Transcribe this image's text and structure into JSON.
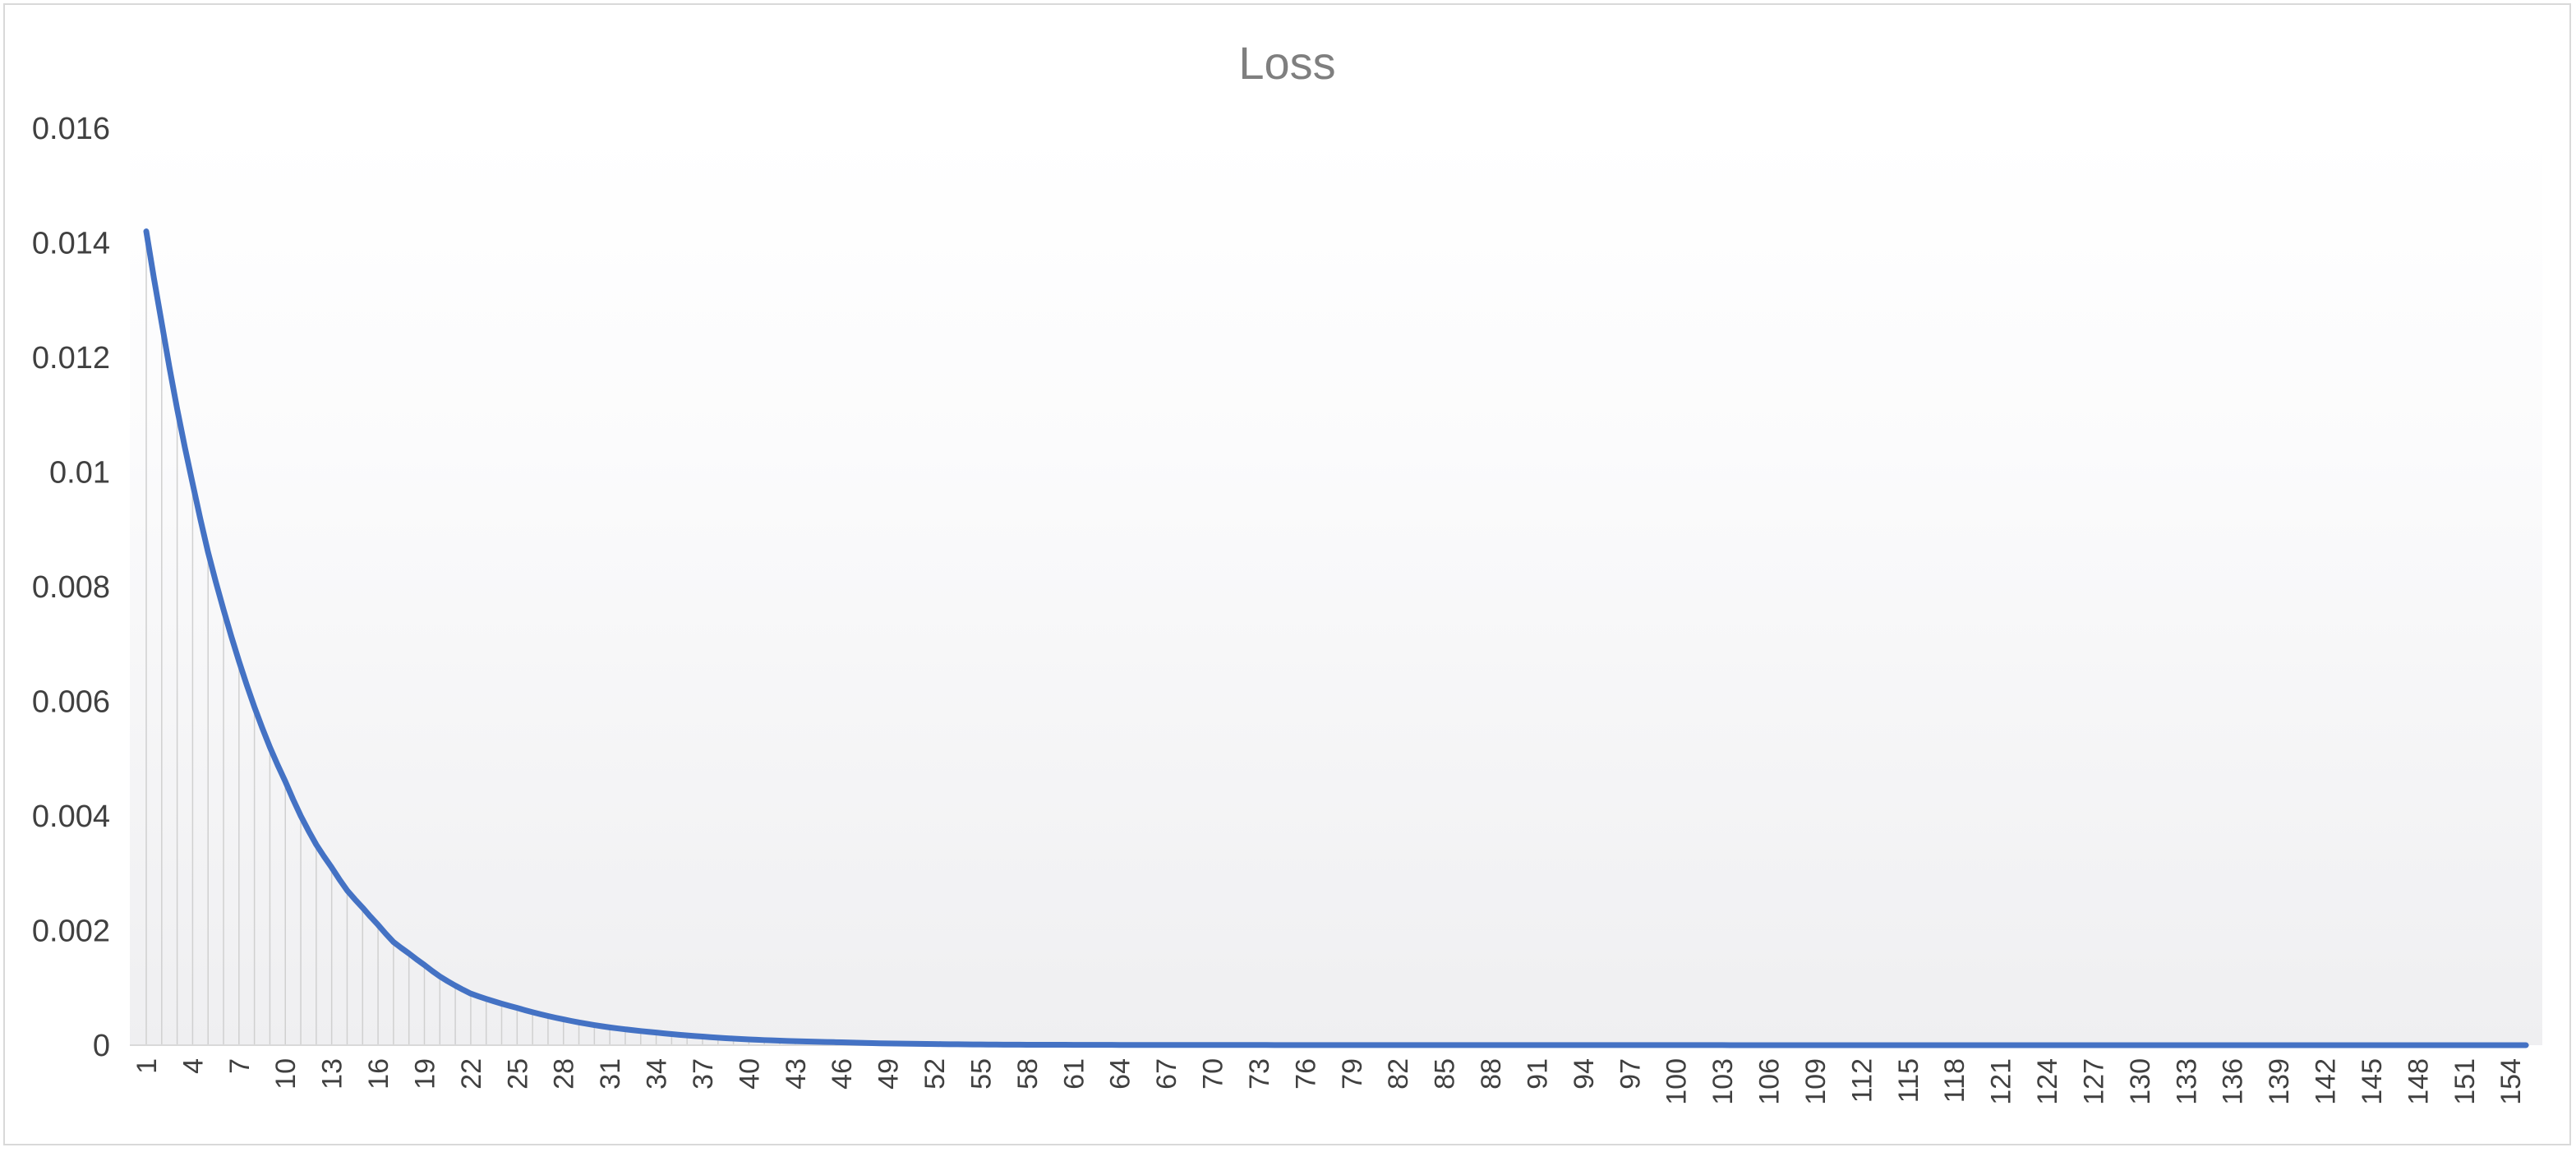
{
  "chart_data": {
    "type": "area",
    "title": "Loss",
    "xlabel": "",
    "ylabel": "",
    "ylim": [
      0,
      0.016
    ],
    "y_ticks": [
      0,
      0.002,
      0.004,
      0.006,
      0.008,
      0.01,
      0.012,
      0.014,
      0.016
    ],
    "y_tick_labels": [
      "0",
      "0.002",
      "0.004",
      "0.006",
      "0.008",
      "0.01",
      "0.012",
      "0.014",
      "0.016"
    ],
    "x_range": [
      1,
      155
    ],
    "x_tick_labels": [
      "1",
      "4",
      "7",
      "10",
      "13",
      "16",
      "19",
      "22",
      "25",
      "28",
      "31",
      "34",
      "37",
      "40",
      "43",
      "46",
      "49",
      "52",
      "55",
      "58",
      "61",
      "64",
      "67",
      "70",
      "73",
      "76",
      "79",
      "82",
      "85",
      "88",
      "91",
      "94",
      "97",
      "100",
      "103",
      "106",
      "109",
      "112",
      "115",
      "118",
      "121",
      "124",
      "127",
      "130",
      "133",
      "136",
      "139",
      "142",
      "145",
      "148",
      "151",
      "154"
    ],
    "series": [
      {
        "x": [
          1,
          2,
          3,
          4,
          5,
          6,
          7,
          8,
          9,
          10,
          11,
          12,
          13,
          14,
          15,
          16,
          17,
          18,
          19,
          20,
          22,
          25,
          28,
          31,
          34,
          37,
          40,
          43,
          46,
          49,
          52,
          55,
          58,
          65,
          80,
          100,
          130,
          155
        ],
        "values": [
          0.0142,
          0.0126,
          0.0111,
          0.0098,
          0.0086,
          0.0076,
          0.0067,
          0.0059,
          0.0052,
          0.0046,
          0.004,
          0.0035,
          0.0031,
          0.0027,
          0.0024,
          0.0021,
          0.0018,
          0.0016,
          0.0014,
          0.0012,
          0.0009,
          0.00065,
          0.00045,
          0.00031,
          0.00022,
          0.00015,
          0.0001,
          7e-05,
          5e-05,
          3e-05,
          2e-05,
          1.2e-05,
          8e-06,
          4e-06,
          2e-06,
          1e-06,
          5e-07,
          2e-07
        ]
      }
    ],
    "grid": false,
    "colors": {
      "line": "#4472c4",
      "title": "#7f7f7f",
      "tick": "#404040",
      "frame": "#d9d9d9",
      "drop_line": "#d0d0d0"
    }
  }
}
